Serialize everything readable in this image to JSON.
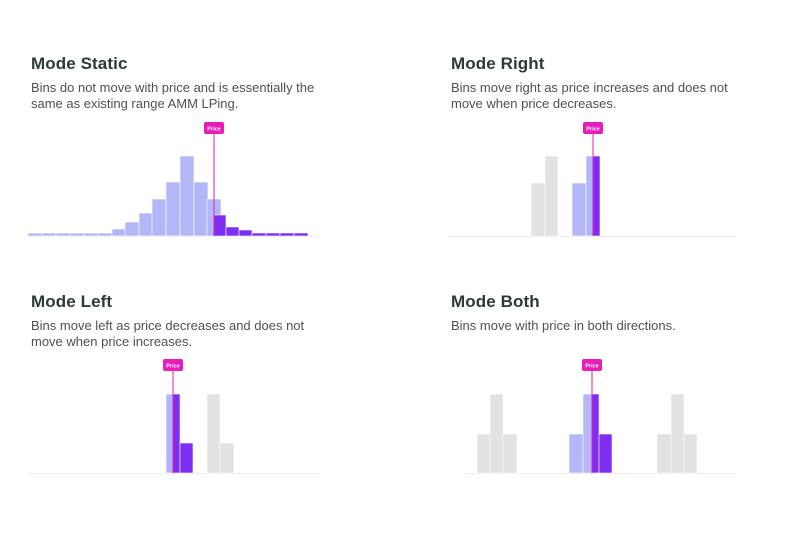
{
  "colors": {
    "light_bin": "#b3b7f8",
    "dark_bin": "#7e2ef2",
    "gray_bin": "#e2e2e2",
    "price_marker": "#e61db8",
    "baseline": "#ececec",
    "title": "#2d3a3a",
    "text": "#4a5252"
  },
  "panels": [
    {
      "id": "static",
      "title": "Mode Static",
      "description_lines": [
        "Bins do not move with price and is essentially the",
        "same as existing range AMM LPing."
      ],
      "price_label": "Price"
    },
    {
      "id": "right",
      "title": "Mode Right",
      "description_lines": [
        "Bins move right as price increases and does not",
        "move when price decreases."
      ],
      "price_label": "Price"
    },
    {
      "id": "left",
      "title": "Mode Left",
      "description_lines": [
        "Bins move left as price decreases and does not",
        "move when price increases."
      ],
      "price_label": "Price"
    },
    {
      "id": "both",
      "title": "Mode Both",
      "description_lines": [
        "Bins move with price in both directions."
      ],
      "price_label": "Price"
    }
  ]
}
